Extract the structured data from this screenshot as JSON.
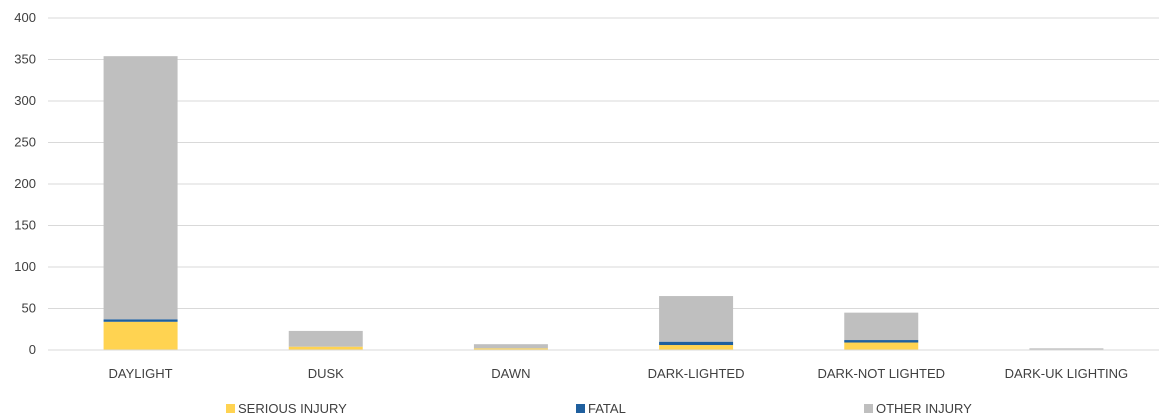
{
  "chart_data": {
    "type": "bar",
    "stacked": true,
    "categories": [
      "DAYLIGHT",
      "DUSK",
      "DAWN",
      "DARK-LIGHTED",
      "DARK-NOT LIGHTED",
      "DARK-UK LIGHTING"
    ],
    "series": [
      {
        "name": "SERIOUS INJURY",
        "color": "#FFD351",
        "values": [
          34,
          4,
          2,
          6,
          9,
          0
        ]
      },
      {
        "name": "FATAL",
        "color": "#1F5F9E",
        "values": [
          3,
          0,
          0,
          4,
          3,
          0
        ]
      },
      {
        "name": "OTHER INJURY",
        "color": "#BFBFBF",
        "values": [
          317,
          19,
          5,
          55,
          33,
          2
        ]
      }
    ],
    "ylim": [
      0,
      400
    ],
    "yticks": [
      0,
      50,
      100,
      150,
      200,
      250,
      300,
      350,
      400
    ],
    "grid": true,
    "legend": "bottom"
  }
}
